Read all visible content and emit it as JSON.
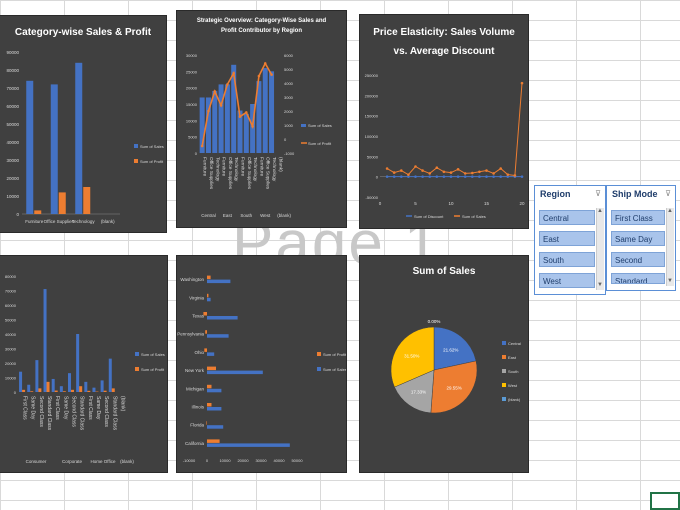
{
  "watermark": "Page 1",
  "chart_data": [
    {
      "id": "c1",
      "type": "bar",
      "title": "Category-wise Sales & Profit",
      "categories": [
        "Furniture",
        "Office Supplies",
        "Technology",
        "(blank)"
      ],
      "series": [
        {
          "name": "Sum of Sales",
          "values": [
            74000,
            72000,
            84000,
            0
          ]
        },
        {
          "name": "Sum of Profit",
          "values": [
            2000,
            12000,
            15000,
            0
          ]
        }
      ],
      "yticks": [
        "0",
        "10000",
        "20000",
        "30000",
        "40000",
        "50000",
        "60000",
        "70000",
        "80000",
        "90000"
      ],
      "ylim": [
        0,
        90000
      ],
      "legend": "right"
    },
    {
      "id": "c2",
      "type": "bar+line",
      "title": "Strategic Overview: Category-Wise Sales and Profit Contributor by Region",
      "regions": [
        "Central",
        "East",
        "South",
        "West",
        "(blank)"
      ],
      "categories": [
        "Furniture",
        "Office Supplies",
        "Technology",
        "Furniture",
        "Office Supplies",
        "Technology",
        "Furniture",
        "Office Supplies",
        "Technology",
        "Furniture",
        "Office Supplies",
        "Technology",
        "(blank)"
      ],
      "series": [
        {
          "name": "Sum of Sales",
          "values": [
            17000,
            17000,
            19000,
            21000,
            21000,
            27000,
            13000,
            12000,
            15000,
            22000,
            26000,
            25000,
            0
          ]
        },
        {
          "name": "Sum of Profit",
          "values": [
            -500,
            2000,
            3400,
            2400,
            3900,
            4700,
            1600,
            1900,
            900,
            4500,
            5400,
            4600,
            0
          ]
        }
      ],
      "yticks_left": [
        "0",
        "5000",
        "10000",
        "15000",
        "20000",
        "25000",
        "30000"
      ],
      "yticks_right": [
        "-1000",
        "0",
        "1000",
        "2000",
        "3000",
        "4000",
        "5000",
        "6000"
      ],
      "ylim_left": [
        0,
        30000
      ],
      "ylim_right": [
        -1000,
        6000
      ],
      "legend": "right"
    },
    {
      "id": "c3",
      "type": "line",
      "title": "Price Elasticity: Sales Volume vs. Average Discount",
      "x": [
        1,
        2,
        3,
        4,
        5,
        6,
        7,
        8,
        9,
        10,
        11,
        12,
        13,
        14,
        15,
        16,
        17,
        18,
        19,
        20
      ],
      "series": [
        {
          "name": "Sum of Discount",
          "values": [
            0,
            0,
            0,
            0,
            0,
            0,
            0,
            0,
            0,
            0,
            0,
            0,
            0,
            0,
            0,
            0,
            0,
            0,
            0,
            0
          ]
        },
        {
          "name": "Sum of Sales",
          "values": [
            20000,
            10000,
            15000,
            5000,
            25000,
            15000,
            8000,
            22000,
            12000,
            10000,
            18000,
            8000,
            9000,
            12000,
            15000,
            8000,
            20000,
            5000,
            3000,
            230000
          ]
        }
      ],
      "xticks": [
        "0",
        "5",
        "10",
        "15",
        "20"
      ],
      "yticks": [
        "-50000",
        "0",
        "50000",
        "100000",
        "150000",
        "200000",
        "250000"
      ],
      "ylim": [
        -50000,
        250000
      ],
      "legend": "bottom"
    },
    {
      "id": "c4",
      "type": "bar",
      "title": "",
      "groups": [
        "Consumer",
        "Corporate",
        "Home Office",
        "(blank)"
      ],
      "categories": [
        "First Class",
        "Same Day",
        "Second Class",
        "Standard Class",
        "First Class",
        "Same Day",
        "Second Class",
        "Standard Class",
        "First Class",
        "Same Day",
        "Second Class",
        "Standard Class",
        "(blank)"
      ],
      "series": [
        {
          "name": "Sum of Sales",
          "values": [
            14000,
            5000,
            22000,
            71000,
            9000,
            4000,
            13000,
            40000,
            7000,
            3000,
            8000,
            23000,
            0
          ]
        },
        {
          "name": "Sum of Profit",
          "values": [
            1500,
            500,
            2500,
            7000,
            1000,
            500,
            1500,
            4000,
            800,
            300,
            900,
            2500,
            0
          ]
        }
      ],
      "yticks": [
        "0",
        "10000",
        "20000",
        "30000",
        "40000",
        "50000",
        "60000",
        "70000",
        "80000"
      ],
      "ylim": [
        0,
        80000
      ],
      "legend": "right"
    },
    {
      "id": "c5",
      "type": "horizontal-bar",
      "title": "",
      "categories": [
        "Washington",
        "Virginia",
        "Texas",
        "Pennsylvania",
        "Ohio",
        "New York",
        "Michigan",
        "Illinois",
        "Florida",
        "California"
      ],
      "series": [
        {
          "name": "Sum of Sales",
          "values": [
            13000,
            2000,
            17000,
            12000,
            4000,
            31000,
            8000,
            8000,
            9000,
            46000
          ]
        },
        {
          "name": "Sum of Profit",
          "values": [
            2000,
            800,
            -2000,
            -1000,
            -1500,
            5000,
            2500,
            2500,
            -300,
            7000
          ]
        }
      ],
      "xticks": [
        "-10000",
        "0",
        "10000",
        "20000",
        "30000",
        "40000",
        "50000"
      ],
      "xlim": [
        -10000,
        50000
      ],
      "legend": "right"
    },
    {
      "id": "c6",
      "type": "pie",
      "title": "Sum of Sales",
      "labels": [
        "Central",
        "East",
        "South",
        "West",
        "(blank)"
      ],
      "values": [
        21.62,
        29.55,
        17.33,
        31.5,
        0.0
      ],
      "data_labels": [
        "21.62%",
        "29.55%",
        "17.33%",
        "31.50%",
        "0.00%"
      ],
      "colors": [
        "#4472c4",
        "#ed7d31",
        "#a5a5a5",
        "#ffc000",
        "#5b9bd5"
      ],
      "legend": "right"
    }
  ],
  "slicers": [
    {
      "title": "Region",
      "items": [
        "Central",
        "East",
        "South",
        "West"
      ]
    },
    {
      "title": "Ship Mode",
      "items": [
        "First Class",
        "Same Day",
        "Second Class",
        "Standard Class"
      ]
    }
  ],
  "colors": {
    "sales": "#4472c4",
    "profit": "#ed7d31",
    "panel": "#404040",
    "axis": "#d9d9d9"
  }
}
